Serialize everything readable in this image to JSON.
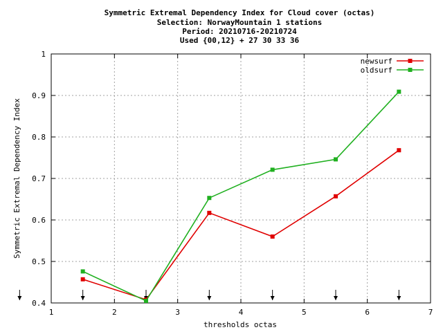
{
  "chart_data": {
    "type": "line",
    "title_lines": [
      "Symmetric Extremal Dependency Index  for Cloud cover (octas)",
      "Selection: NorwayMountain      1 stations",
      "Period: 20210716-20210724",
      "Used {00,12} + 27 30 33 36"
    ],
    "xlabel": "thresholds octas",
    "ylabel": "Symmetric Extremal Dependency Index",
    "xlim": [
      1,
      7
    ],
    "ylim": [
      0.4,
      1
    ],
    "x_ticks": [
      1,
      2,
      3,
      4,
      5,
      6,
      7
    ],
    "x_tick_labels": [
      "1",
      "2",
      "3",
      "4",
      "5",
      "6",
      "7"
    ],
    "y_ticks": [
      0.4,
      0.5,
      0.6,
      0.7,
      0.8,
      0.9,
      1.0
    ],
    "y_tick_labels": [
      "0.4",
      "0.5",
      "0.6",
      "0.7",
      "0.8",
      "0.9",
      "1"
    ],
    "grid": true,
    "legend_position": "top-right",
    "arrow_markers_x": [
      0.5,
      1.5,
      2.5,
      3.5,
      4.5,
      5.5,
      6.5
    ],
    "series": [
      {
        "name": "newsurf",
        "color": "#e00000",
        "x": [
          1.5,
          2.5,
          3.5,
          4.5,
          5.5,
          6.5
        ],
        "values": [
          0.457,
          0.408,
          0.617,
          0.56,
          0.657,
          0.768
        ]
      },
      {
        "name": "oldsurf",
        "color": "#20b020",
        "x": [
          1.5,
          2.5,
          3.5,
          4.5,
          5.5,
          6.5
        ],
        "values": [
          0.476,
          0.405,
          0.653,
          0.721,
          0.746,
          0.909
        ]
      }
    ]
  }
}
